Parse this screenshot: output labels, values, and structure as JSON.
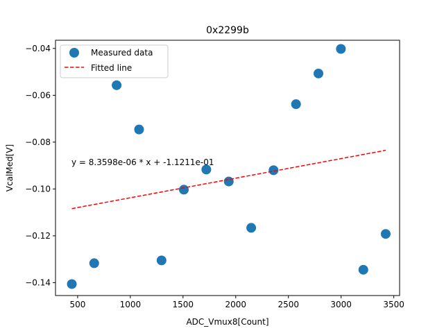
{
  "chart_data": {
    "type": "scatter",
    "title": "0x2299b",
    "xlabel": "ADC_Vmux8[Count]",
    "ylabel": "VcalMed[V]",
    "xlim": [
      290,
      3555
    ],
    "ylim": [
      -0.1455,
      -0.0365
    ],
    "xticks": [
      500,
      1000,
      1500,
      2000,
      2500,
      3000,
      3500
    ],
    "xtick_labels": [
      "500",
      "1000",
      "1500",
      "2000",
      "2500",
      "3000",
      "3500"
    ],
    "yticks": [
      -0.14,
      -0.12,
      -0.1,
      -0.08,
      -0.06,
      -0.04
    ],
    "ytick_labels": [
      "−0.14",
      "−0.12",
      "−0.10",
      "−0.08",
      "−0.06",
      "−0.04"
    ],
    "grid": false,
    "legend_position": "top-left",
    "series": [
      {
        "name": "Measured data",
        "kind": "scatter",
        "color": "#1f77b4",
        "x": [
          445,
          657,
          870,
          1083,
          1296,
          1508,
          1721,
          1934,
          2147,
          2359,
          2572,
          2785,
          2998,
          3211,
          3423
        ],
        "y": [
          -0.1406,
          -0.1317,
          -0.0557,
          -0.0746,
          -0.1305,
          -0.1003,
          -0.0917,
          -0.0968,
          -0.1166,
          -0.092,
          -0.0638,
          -0.0507,
          -0.0402,
          -0.1345,
          -0.1192
        ]
      },
      {
        "name": "Fitted line",
        "kind": "line",
        "style": "dashed",
        "color": "#ff0000",
        "slope": 8.3598e-06,
        "intercept": -0.11211,
        "x": [
          445,
          3423
        ]
      }
    ],
    "annotation": "y = 8.3598e-06 * x + -1.1211e-01"
  }
}
